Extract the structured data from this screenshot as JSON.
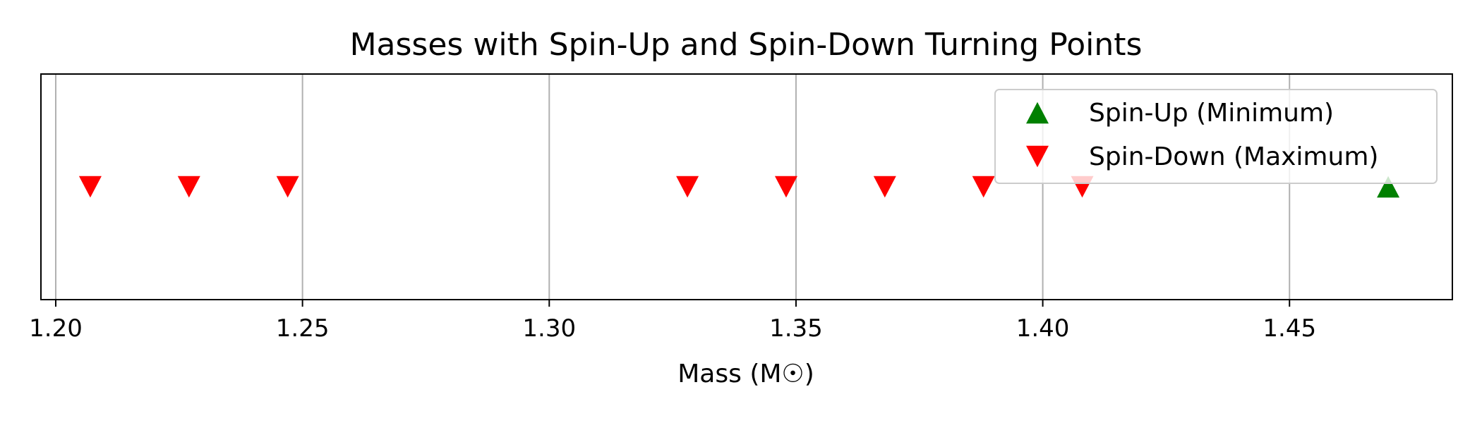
{
  "chart_data": {
    "type": "scatter",
    "title": "Masses with Spin-Up and Spin-Down Turning Points",
    "xlabel": "Mass (M☉)",
    "ylabel": "",
    "xlim": [
      1.197,
      1.483
    ],
    "ylim": [
      -1,
      1
    ],
    "grid": "vertical",
    "legend_position": "top-right",
    "x_ticks": [
      1.2,
      1.25,
      1.3,
      1.35,
      1.4,
      1.45
    ],
    "x_tick_labels": [
      "1.20",
      "1.25",
      "1.30",
      "1.35",
      "1.40",
      "1.45"
    ],
    "series": [
      {
        "name": "Spin-Up (Minimum)",
        "marker": "triangle-up",
        "color": "#008000",
        "x": [
          1.47
        ],
        "y": [
          0
        ]
      },
      {
        "name": "Spin-Down (Maximum)",
        "marker": "triangle-down",
        "color": "#ff0000",
        "x": [
          1.207,
          1.227,
          1.247,
          1.328,
          1.348,
          1.368,
          1.388,
          1.408
        ],
        "y": [
          0,
          0,
          0,
          0,
          0,
          0,
          0,
          0
        ]
      }
    ]
  }
}
